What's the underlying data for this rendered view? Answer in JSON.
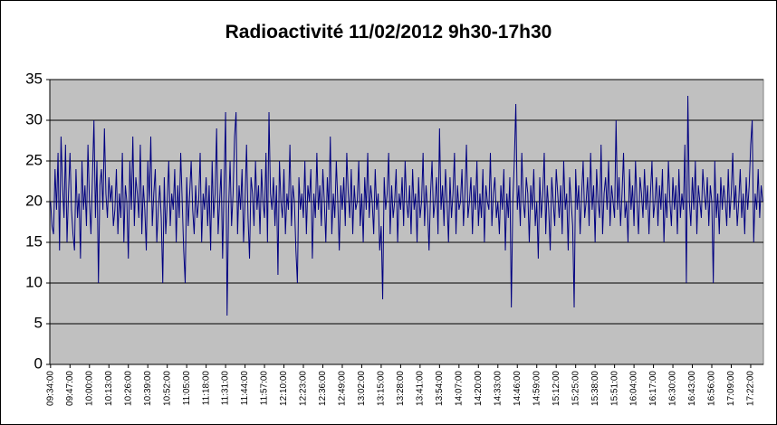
{
  "chart_data": {
    "type": "line",
    "title": "Radioactivité 11/02/2012 9h30-17h30",
    "ylim": [
      0,
      35
    ],
    "yticks": [
      0,
      5,
      10,
      15,
      20,
      25,
      30,
      35
    ],
    "grid": true,
    "categories": [
      "09:34:00",
      null,
      null,
      null,
      null,
      null,
      null,
      null,
      null,
      null,
      null,
      null,
      null,
      "09:47:00",
      null,
      null,
      null,
      null,
      null,
      null,
      null,
      null,
      null,
      null,
      null,
      null,
      "10:00:00",
      null,
      null,
      null,
      null,
      null,
      null,
      null,
      null,
      null,
      null,
      null,
      null,
      "10:13:00",
      null,
      null,
      null,
      null,
      null,
      null,
      null,
      null,
      null,
      null,
      null,
      null,
      "10:26:00",
      null,
      null,
      null,
      null,
      null,
      null,
      null,
      null,
      null,
      null,
      null,
      null,
      "10:39:00",
      null,
      null,
      null,
      null,
      null,
      null,
      null,
      null,
      null,
      null,
      null,
      null,
      "10:52:00",
      null,
      null,
      null,
      null,
      null,
      null,
      null,
      null,
      null,
      null,
      null,
      null,
      "11:05:00",
      null,
      null,
      null,
      null,
      null,
      null,
      null,
      null,
      null,
      null,
      null,
      null,
      "11:18:00",
      null,
      null,
      null,
      null,
      null,
      null,
      null,
      null,
      null,
      null,
      null,
      null,
      "11:31:00",
      null,
      null,
      null,
      null,
      null,
      null,
      null,
      null,
      null,
      null,
      null,
      null,
      "11:44:00",
      null,
      null,
      null,
      null,
      null,
      null,
      null,
      null,
      null,
      null,
      null,
      null,
      "11:57:00",
      null,
      null,
      null,
      null,
      null,
      null,
      null,
      null,
      null,
      null,
      null,
      null,
      "12:10:00",
      null,
      null,
      null,
      null,
      null,
      null,
      null,
      null,
      null,
      null,
      null,
      null,
      "12:23:00",
      null,
      null,
      null,
      null,
      null,
      null,
      null,
      null,
      null,
      null,
      null,
      null,
      "12:36:00",
      null,
      null,
      null,
      null,
      null,
      null,
      null,
      null,
      null,
      null,
      null,
      null,
      "12:49:00",
      null,
      null,
      null,
      null,
      null,
      null,
      null,
      null,
      null,
      null,
      null,
      null,
      "13:02:00",
      null,
      null,
      null,
      null,
      null,
      null,
      null,
      null,
      null,
      null,
      null,
      null,
      "13:15:00",
      null,
      null,
      null,
      null,
      null,
      null,
      null,
      null,
      null,
      null,
      null,
      null,
      "13:28:00",
      null,
      null,
      null,
      null,
      null,
      null,
      null,
      null,
      null,
      null,
      null,
      null,
      "13:41:00",
      null,
      null,
      null,
      null,
      null,
      null,
      null,
      null,
      null,
      null,
      null,
      null,
      "13:54:00",
      null,
      null,
      null,
      null,
      null,
      null,
      null,
      null,
      null,
      null,
      null,
      null,
      "14:07:00",
      null,
      null,
      null,
      null,
      null,
      null,
      null,
      null,
      null,
      null,
      null,
      null,
      "14:20:00",
      null,
      null,
      null,
      null,
      null,
      null,
      null,
      null,
      null,
      null,
      null,
      null,
      "14:33:00",
      null,
      null,
      null,
      null,
      null,
      null,
      null,
      null,
      null,
      null,
      null,
      null,
      "14:46:00",
      null,
      null,
      null,
      null,
      null,
      null,
      null,
      null,
      null,
      null,
      null,
      null,
      "14:59:00",
      null,
      null,
      null,
      null,
      null,
      null,
      null,
      null,
      null,
      null,
      null,
      null,
      "15:12:00",
      null,
      null,
      null,
      null,
      null,
      null,
      null,
      null,
      null,
      null,
      null,
      null,
      "15:25:00",
      null,
      null,
      null,
      null,
      null,
      null,
      null,
      null,
      null,
      null,
      null,
      null,
      "15:38:00",
      null,
      null,
      null,
      null,
      null,
      null,
      null,
      null,
      null,
      null,
      null,
      null,
      "15:51:00",
      null,
      null,
      null,
      null,
      null,
      null,
      null,
      null,
      null,
      null,
      null,
      null,
      "16:04:00",
      null,
      null,
      null,
      null,
      null,
      null,
      null,
      null,
      null,
      null,
      null,
      null,
      "16:17:00",
      null,
      null,
      null,
      null,
      null,
      null,
      null,
      null,
      null,
      null,
      null,
      null,
      "16:30:00",
      null,
      null,
      null,
      null,
      null,
      null,
      null,
      null,
      null,
      null,
      null,
      null,
      "16:43:00",
      null,
      null,
      null,
      null,
      null,
      null,
      null,
      null,
      null,
      null,
      null,
      null,
      "16:56:00",
      null,
      null,
      null,
      null,
      null,
      null,
      null,
      null,
      null,
      null,
      null,
      null,
      "17:09:00",
      null,
      null,
      null,
      null,
      null,
      null,
      null,
      null,
      null,
      null,
      null,
      null,
      "17:22:00",
      null,
      null,
      null,
      null,
      null,
      null,
      null,
      null
    ],
    "series": [
      {
        "color": "#000080",
        "values": [
          20,
          17,
          16,
          24,
          19,
          26,
          14,
          28,
          22,
          18,
          27,
          15,
          21,
          26,
          19,
          16,
          14,
          24,
          18,
          21,
          13,
          25,
          19,
          22,
          17,
          27,
          20,
          16,
          23,
          30,
          18,
          25,
          10,
          22,
          24,
          19,
          29,
          21,
          18,
          23,
          20,
          22,
          17,
          19,
          24,
          16,
          21,
          18,
          26,
          15,
          22,
          20,
          13,
          25,
          19,
          28,
          17,
          23,
          21,
          18,
          27,
          16,
          22,
          19,
          14,
          25,
          20,
          28,
          17,
          21,
          24,
          15,
          19,
          22,
          18,
          10,
          23,
          16,
          20,
          25,
          17,
          21,
          19,
          24,
          15,
          22,
          18,
          26,
          20,
          14,
          10,
          23,
          17,
          21,
          25,
          19,
          16,
          22,
          18,
          20,
          26,
          15,
          21,
          19,
          23,
          17,
          22,
          14,
          25,
          18,
          21,
          29,
          16,
          20,
          24,
          13,
          22,
          31,
          6,
          19,
          25,
          17,
          21,
          28,
          31,
          16,
          22,
          19,
          24,
          15,
          20,
          27,
          18,
          13,
          23,
          21,
          17,
          25,
          19,
          22,
          16,
          24,
          20,
          18,
          26,
          15,
          31,
          21,
          19,
          23,
          17,
          22,
          11,
          25,
          20,
          18,
          24,
          16,
          21,
          19,
          27,
          17,
          22,
          20,
          14,
          10,
          23,
          19,
          21,
          18,
          25,
          16,
          22,
          20,
          24,
          13,
          21,
          18,
          26,
          19,
          22,
          17,
          24,
          20,
          15,
          23,
          19,
          28,
          16,
          21,
          18,
          25,
          20,
          14,
          22,
          19,
          23,
          17,
          26,
          21,
          18,
          24,
          16,
          22,
          19,
          20,
          25,
          17,
          21,
          15,
          23,
          19,
          26,
          18,
          22,
          20,
          16,
          24,
          19,
          21,
          14,
          17,
          8,
          23,
          19,
          21,
          26,
          16,
          22,
          18,
          20,
          24,
          15,
          21,
          19,
          23,
          17,
          25,
          20,
          18,
          22,
          16,
          24,
          19,
          21,
          15,
          23,
          18,
          20,
          26,
          17,
          22,
          19,
          14,
          21,
          25,
          18,
          20,
          23,
          16,
          29,
          19,
          22,
          17,
          24,
          20,
          15,
          23,
          18,
          21,
          26,
          16,
          22,
          19,
          20,
          24,
          17,
          21,
          27,
          18,
          20,
          23,
          16,
          22,
          19,
          25,
          17,
          21,
          18,
          24,
          15,
          22,
          20,
          19,
          26,
          17,
          21,
          23,
          18,
          20,
          16,
          22,
          19,
          24,
          14,
          21,
          18,
          23,
          7,
          20,
          25,
          32,
          19,
          22,
          17,
          26,
          20,
          18,
          23,
          21,
          15,
          22,
          19,
          24,
          17,
          20,
          13,
          23,
          18,
          21,
          26,
          16,
          22,
          19,
          14,
          23,
          20,
          17,
          24,
          21,
          18,
          22,
          16,
          25,
          19,
          21,
          14,
          23,
          20,
          17,
          7,
          24,
          19,
          22,
          16,
          21,
          25,
          18,
          20,
          23,
          17,
          26,
          19,
          22,
          15,
          24,
          20,
          18,
          27,
          16,
          21,
          23,
          19,
          25,
          17,
          22,
          20,
          18,
          30,
          19,
          23,
          17,
          21,
          26,
          18,
          20,
          15,
          24,
          19,
          22,
          17,
          25,
          20,
          16,
          23,
          21,
          18,
          24,
          19,
          22,
          16,
          21,
          25,
          18,
          20,
          23,
          17,
          22,
          19,
          24,
          15,
          21,
          18,
          25,
          20,
          17,
          23,
          19,
          22,
          16,
          24,
          18,
          21,
          19,
          27,
          10,
          33,
          20,
          17,
          23,
          19,
          25,
          16,
          22,
          20,
          18,
          24,
          21,
          19,
          23,
          17,
          22,
          20,
          10,
          25,
          18,
          21,
          16,
          23,
          19,
          22,
          20,
          17,
          24,
          18,
          21,
          26,
          19,
          22,
          17,
          20,
          24,
          18,
          21,
          16,
          23,
          19,
          22,
          27,
          30,
          15,
          21,
          19,
          24,
          18,
          22,
          20
        ]
      }
    ]
  }
}
